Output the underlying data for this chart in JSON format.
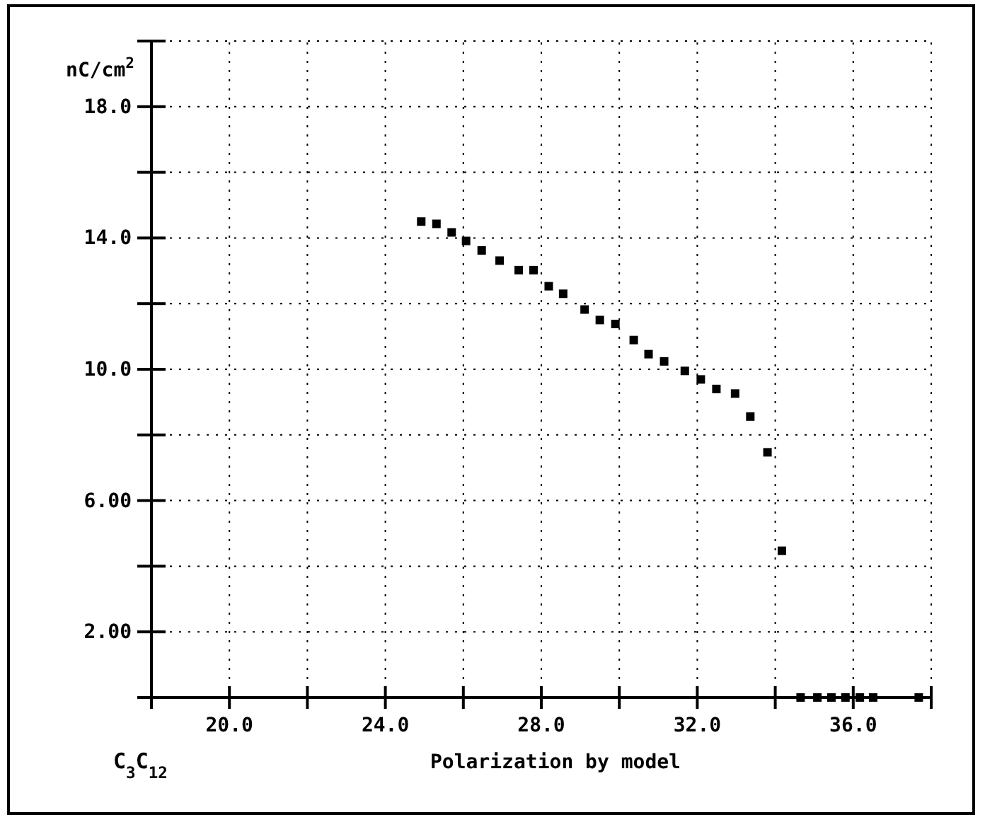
{
  "chart_data": {
    "type": "scatter",
    "xlabel": "Polarization by model",
    "ylabel": "nC/cm$^{2}$",
    "annotations": [
      "C$_{3}$C$_{12}$"
    ],
    "x": [
      24.92,
      25.31,
      25.7,
      26.07,
      26.47,
      26.93,
      27.42,
      27.8,
      28.19,
      28.56,
      29.11,
      29.5,
      29.9,
      30.37,
      30.75,
      31.15,
      31.68,
      32.09,
      32.49,
      32.97,
      33.36,
      33.8,
      34.17,
      34.65,
      35.08,
      35.44,
      35.8,
      36.17,
      36.51,
      37.68
    ],
    "series": [
      {
        "color": "#000000",
        "values": [
          14.5,
          14.43,
          14.17,
          13.91,
          13.62,
          13.31,
          13.02,
          13.02,
          12.53,
          12.3,
          11.82,
          11.5,
          11.38,
          10.89,
          10.46,
          10.24,
          9.95,
          9.69,
          9.4,
          9.26,
          8.56,
          7.47,
          4.47,
          0,
          0,
          0,
          0,
          0,
          0,
          0
        ]
      }
    ],
    "xlim": [
      18,
      38
    ],
    "ylim": [
      0,
      20
    ],
    "xticks": [
      {
        "value": 18,
        "label": null
      },
      {
        "value": 20,
        "label": "20.0"
      },
      {
        "value": 22,
        "label": null
      },
      {
        "value": 24,
        "label": "24.0"
      },
      {
        "value": 26,
        "label": null
      },
      {
        "value": 28,
        "label": "28.0"
      },
      {
        "value": 30,
        "label": null
      },
      {
        "value": 32,
        "label": "32.0"
      },
      {
        "value": 34,
        "label": null
      },
      {
        "value": 36,
        "label": "36.0"
      },
      {
        "value": 38,
        "label": null
      }
    ],
    "yticks": [
      {
        "value": 0,
        "label": null
      },
      {
        "value": 2,
        "label": "2.00"
      },
      {
        "value": 4,
        "label": null
      },
      {
        "value": 6,
        "label": "6.00"
      },
      {
        "value": 8,
        "label": null
      },
      {
        "value": 10,
        "label": "10.0"
      },
      {
        "value": 12,
        "label": null
      },
      {
        "value": 14,
        "label": "14.0"
      },
      {
        "value": 16,
        "label": null
      },
      {
        "value": 18,
        "label": "18.0"
      },
      {
        "value": 20,
        "label": null
      }
    ],
    "grid": true,
    "marker": "square"
  }
}
